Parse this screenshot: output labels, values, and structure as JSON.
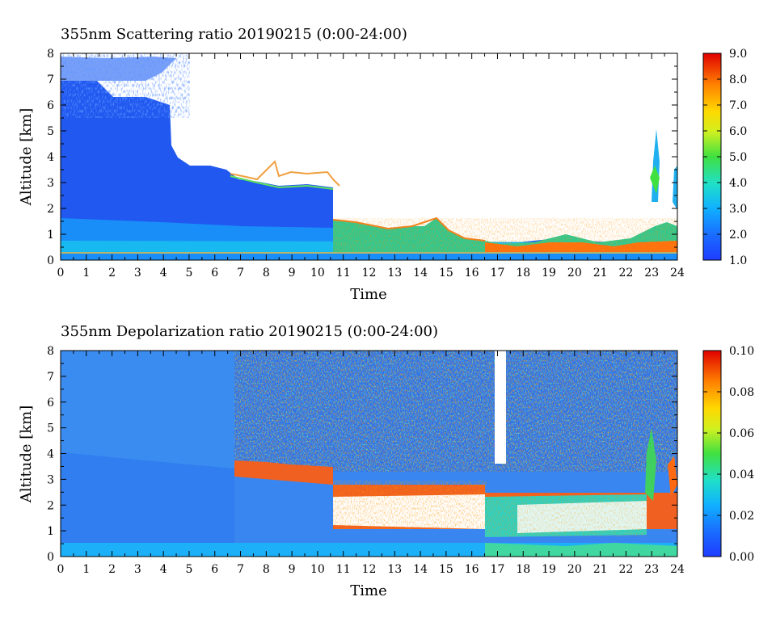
{
  "chart_data": [
    {
      "type": "heatmap",
      "title": "355nm Scattering ratio  20190215 (0:00-24:00)",
      "xlabel": "Time",
      "ylabel": "Altitude [km]",
      "xlim": [
        0,
        24
      ],
      "ylim": [
        0,
        8
      ],
      "x_ticks": [
        "0",
        "1",
        "2",
        "3",
        "4",
        "5",
        "6",
        "7",
        "8",
        "9",
        "10",
        "11",
        "12",
        "13",
        "14",
        "15",
        "16",
        "17",
        "18",
        "19",
        "20",
        "21",
        "22",
        "23",
        "24"
      ],
      "y_ticks": [
        "0",
        "1",
        "2",
        "3",
        "4",
        "5",
        "6",
        "7",
        "8"
      ],
      "colorbar": {
        "min": 1.0,
        "max": 9.0,
        "tick_labels": [
          "1.0",
          "2.0",
          "3.0",
          "4.0",
          "5.0",
          "6.0",
          "7.0",
          "8.0",
          "9.0"
        ]
      },
      "grid": false
    },
    {
      "type": "heatmap",
      "title": "355nm Depolarization ratio  20190215 (0:00-24:00)",
      "xlabel": "Time",
      "ylabel": "Altitude [km]",
      "xlim": [
        0,
        24
      ],
      "ylim": [
        0,
        8
      ],
      "x_ticks": [
        "0",
        "1",
        "2",
        "3",
        "4",
        "5",
        "6",
        "7",
        "8",
        "9",
        "10",
        "11",
        "12",
        "13",
        "14",
        "15",
        "16",
        "17",
        "18",
        "19",
        "20",
        "21",
        "22",
        "23",
        "24"
      ],
      "y_ticks": [
        "0",
        "1",
        "2",
        "3",
        "4",
        "5",
        "6",
        "7",
        "8"
      ],
      "colorbar": {
        "min": 0.0,
        "max": 0.1,
        "tick_labels": [
          "0.00",
          "0.02",
          "0.04",
          "0.06",
          "0.08",
          "0.10"
        ]
      },
      "grid": false
    }
  ],
  "colors": {
    "colormap": [
      "#2040ff",
      "#1a70ff",
      "#10a8ff",
      "#20e0d0",
      "#40e840",
      "#c8f020",
      "#ffe000",
      "#ff9000",
      "#ff3000",
      "#e00000"
    ]
  }
}
